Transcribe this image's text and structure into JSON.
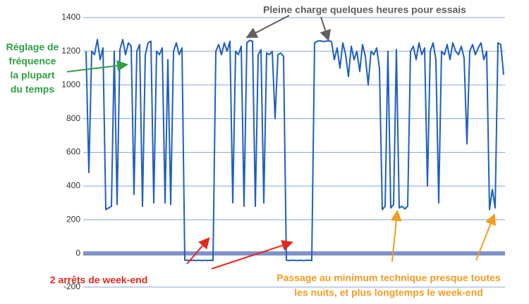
{
  "chart_data": {
    "type": "line",
    "ylim": [
      -200,
      1400
    ],
    "yticks": [
      -200,
      0,
      200,
      400,
      600,
      800,
      1000,
      1200,
      1400
    ],
    "grid": true,
    "series": [
      {
        "color": "#1f5fbf",
        "values": [
          1200,
          480,
          1200,
          1180,
          1270,
          1150,
          1220,
          260,
          270,
          280,
          1200,
          290,
          1210,
          1270,
          1180,
          1250,
          1230,
          350,
          1200,
          1240,
          280,
          1180,
          1250,
          1260,
          300,
          1200,
          1180,
          1220,
          300,
          1150,
          290,
          1200,
          1250,
          1180,
          1220,
          -40,
          -40,
          -42,
          -40,
          -42,
          -40,
          -43,
          -40,
          -42,
          -40,
          -42,
          1200,
          1240,
          1180,
          1250,
          1200,
          1260,
          300,
          1200,
          1180,
          1230,
          280,
          1250,
          1265,
          1260,
          280,
          1180,
          1210,
          300,
          1190,
          1180,
          1200,
          800,
          1180,
          1190,
          1170,
          -40,
          -42,
          -40,
          -41,
          -42,
          -40,
          -43,
          -41,
          -40,
          -42,
          1250,
          1260,
          1262,
          1258,
          1260,
          1262,
          1258,
          1150,
          1220,
          1100,
          1250,
          1180,
          1050,
          1230,
          1150,
          1200,
          1080,
          1240,
          1170,
          1000,
          1200,
          1180,
          1220,
          1100,
          260,
          280,
          1200,
          270,
          290,
          1210,
          270,
          280,
          265,
          280,
          1200,
          1230,
          1150,
          1250,
          1180,
          1220,
          400,
          1200,
          1250,
          1150,
          300,
          1200,
          1180,
          1240,
          1150,
          1250,
          1200,
          1180,
          1230,
          1160,
          650,
          1200,
          1240,
          1180,
          1220,
          1250,
          1150,
          1200,
          260,
          380,
          270,
          1250,
          1240,
          1060
        ]
      }
    ],
    "annotations": [
      {
        "lines": [
          "Pleine charge quelques heures pour essais"
        ],
        "color": "#5f5f5f"
      },
      {
        "lines": [
          "Réglage de",
          "fréquence",
          "la plupart",
          "du temps"
        ],
        "color": "#2ea043"
      },
      {
        "lines": [
          "2 arrêts de week-end"
        ],
        "color": "#e3281c"
      },
      {
        "lines": [
          "Passage au minimum technique presque toutes",
          "les nuits, et plus longtemps le week-end"
        ],
        "color": "#f39c1f"
      }
    ]
  }
}
